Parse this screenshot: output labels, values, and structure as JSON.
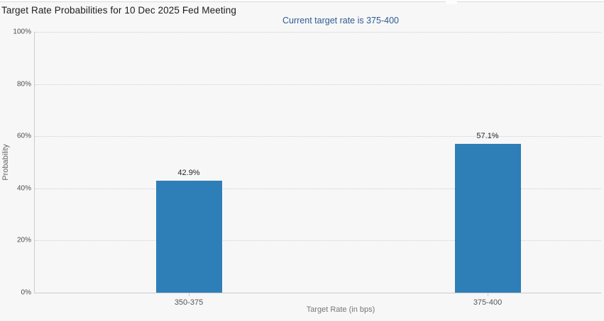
{
  "chart_data": {
    "type": "bar",
    "title": "Target Rate Probabilities for 10 Dec 2025 Fed Meeting",
    "subtitle": "Current target rate is 375-400",
    "categories": [
      "350-375",
      "375-400"
    ],
    "values": [
      42.9,
      57.1
    ],
    "value_labels": [
      "42.9%",
      "57.1%"
    ],
    "xlabel": "Target Rate (in bps)",
    "ylabel": "Probability",
    "ylim": [
      0,
      100
    ],
    "yticks": [
      0,
      20,
      40,
      60,
      80,
      100
    ],
    "ytick_labels": [
      "0%",
      "20%",
      "40%",
      "60%",
      "80%",
      "100%"
    ],
    "grid": "horizontal-dotted",
    "legend": "none",
    "bar_color": "#2e7eb8"
  },
  "colors": {
    "background": "#f7f7f7",
    "bar": "#2e7eb8",
    "axis": "#cccccc",
    "title_text": "#1c1c1c",
    "subtitle_text": "#2e5b94",
    "tick_text": "#4d4d4d",
    "axis_title_text": "#666666"
  }
}
